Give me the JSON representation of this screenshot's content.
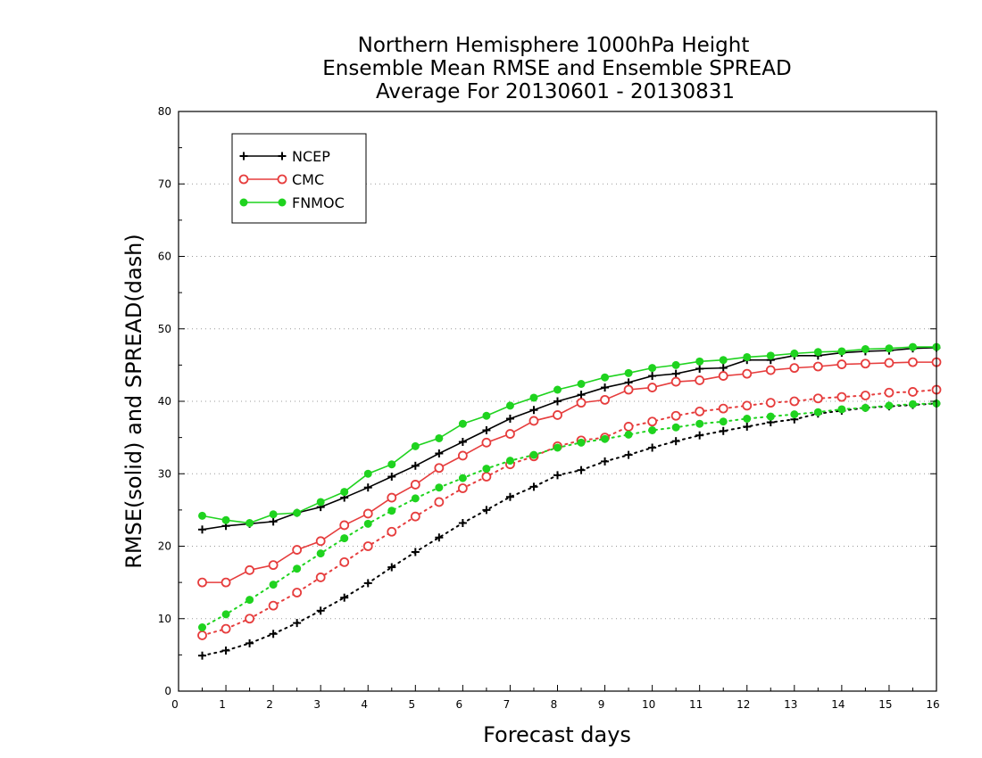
{
  "chart_data": {
    "type": "line",
    "title_lines": [
      "Northern Hemisphere 1000hPa Height",
      "Ensemble Mean RMSE and Ensemble SPREAD",
      "Average For 20130601 - 20130831"
    ],
    "xlabel": "Forecast days",
    "ylabel": "RMSE(solid) and SPREAD(dash)",
    "xlim": [
      0,
      16
    ],
    "ylim": [
      0,
      80
    ],
    "x_ticks": [
      "0",
      "1",
      "2",
      "3",
      "4",
      "5",
      "6",
      "7",
      "8",
      "9",
      "10",
      "11",
      "12",
      "13",
      "14",
      "15",
      "16"
    ],
    "y_ticks": [
      "0",
      "10",
      "20",
      "30",
      "40",
      "50",
      "60",
      "70",
      "80"
    ],
    "grid": "horizontal dotted",
    "legend_position": "top-left",
    "x": [
      0.5,
      1,
      1.5,
      2,
      2.5,
      3,
      3.5,
      4,
      4.5,
      5,
      5.5,
      6,
      6.5,
      7,
      7.5,
      8,
      8.5,
      9,
      9.5,
      10,
      10.5,
      11,
      11.5,
      12,
      12.5,
      13,
      13.5,
      14,
      14.5,
      15,
      15.5,
      16
    ],
    "series": [
      {
        "name": "NCEP",
        "color": "#000000",
        "marker": "plus",
        "rmse": [
          22.3,
          22.8,
          23.1,
          23.4,
          24.6,
          25.4,
          26.7,
          28.1,
          29.6,
          31.1,
          32.8,
          34.4,
          36.0,
          37.6,
          38.8,
          40.0,
          40.9,
          41.9,
          42.6,
          43.5,
          43.8,
          44.5,
          44.6,
          45.7,
          45.7,
          46.3,
          46.3,
          46.7,
          46.9,
          47.0,
          47.3,
          47.4
        ],
        "spread": [
          4.9,
          5.6,
          6.6,
          7.9,
          9.4,
          11.1,
          12.9,
          14.9,
          17.1,
          19.2,
          21.2,
          23.2,
          25.0,
          26.8,
          28.2,
          29.8,
          30.5,
          31.7,
          32.6,
          33.6,
          34.5,
          35.3,
          35.9,
          36.5,
          37.1,
          37.5,
          38.3,
          38.7,
          39.1,
          39.3,
          39.5,
          39.7
        ]
      },
      {
        "name": "CMC",
        "color": "#e63d3d",
        "marker": "circle-open",
        "rmse": [
          15.0,
          15.0,
          16.7,
          17.4,
          19.5,
          20.7,
          22.9,
          24.5,
          26.7,
          28.5,
          30.8,
          32.5,
          34.3,
          35.5,
          37.3,
          38.1,
          39.8,
          40.2,
          41.6,
          41.9,
          42.7,
          42.9,
          43.5,
          43.8,
          44.3,
          44.6,
          44.8,
          45.1,
          45.2,
          45.3,
          45.4,
          45.4
        ],
        "spread": [
          7.7,
          8.6,
          10.0,
          11.8,
          13.6,
          15.7,
          17.8,
          20.0,
          22.0,
          24.1,
          26.1,
          28.0,
          29.6,
          31.3,
          32.4,
          33.8,
          34.6,
          35.0,
          36.5,
          37.2,
          38.0,
          38.6,
          39.0,
          39.4,
          39.8,
          40.0,
          40.4,
          40.6,
          40.8,
          41.2,
          41.3,
          41.6
        ]
      },
      {
        "name": "FNMOC",
        "color": "#1fd31f",
        "marker": "circle-filled",
        "rmse": [
          24.2,
          23.6,
          23.2,
          24.4,
          24.6,
          26.1,
          27.5,
          30.0,
          31.3,
          33.8,
          34.9,
          36.9,
          38.0,
          39.4,
          40.5,
          41.6,
          42.4,
          43.3,
          43.9,
          44.6,
          45.0,
          45.5,
          45.7,
          46.1,
          46.3,
          46.6,
          46.8,
          46.9,
          47.2,
          47.3,
          47.5,
          47.5
        ],
        "spread": [
          8.8,
          10.6,
          12.6,
          14.7,
          16.9,
          19.0,
          21.1,
          23.1,
          24.9,
          26.6,
          28.1,
          29.4,
          30.7,
          31.8,
          32.6,
          33.6,
          34.3,
          34.8,
          35.4,
          36.0,
          36.4,
          36.9,
          37.2,
          37.6,
          37.9,
          38.2,
          38.5,
          38.9,
          39.1,
          39.4,
          39.6,
          39.7
        ]
      }
    ]
  }
}
